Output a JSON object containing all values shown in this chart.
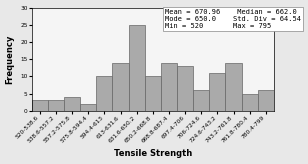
{
  "categories": [
    "520-538.6",
    "538.6-557.2",
    "557.2-575.8",
    "575.8-594.4",
    "594.4-613",
    "613-631.6",
    "631.6-650.2",
    "650.2-668.8",
    "668.8-687.4",
    "697.4-706",
    "706-724.6",
    "724.6-743.2",
    "743.2-761.8",
    "761.8-780.4",
    "780.4-799"
  ],
  "frequencies": [
    3,
    3,
    4,
    2,
    10,
    14,
    25,
    10,
    14,
    13,
    6,
    11,
    14,
    5,
    6
  ],
  "bar_color": "#aaaaaa",
  "bar_edgecolor": "#666666",
  "xlabel": "Tensile Strength",
  "ylabel": "Frequency",
  "ylim": [
    0,
    30
  ],
  "yticks": [
    0,
    5,
    10,
    15,
    20,
    25,
    30
  ],
  "stats_line1_left": "Mean = 670.96",
  "stats_line2_left": "Mode = 650.0",
  "stats_line3_left": "Min = 520",
  "stats_line1_right": "Median = 662.0",
  "stats_line2_right": "Std. Div = 64.54",
  "stats_line3_right": "Max = 795",
  "xlabel_fontsize": 6,
  "ylabel_fontsize": 6,
  "tick_fontsize": 4.2,
  "stats_fontsize": 5.0,
  "bg_color": "#e8e8e8",
  "plot_bg_color": "#f5f5f5"
}
